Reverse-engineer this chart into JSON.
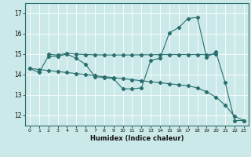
{
  "xlabel": "Humidex (Indice chaleur)",
  "bg_color": "#cce9e9",
  "grid_color": "#ffffff",
  "line_color": "#2a6e6e",
  "xlim": [
    -0.5,
    23.5
  ],
  "ylim": [
    11.5,
    17.5
  ],
  "xticks": [
    0,
    1,
    2,
    3,
    4,
    5,
    6,
    7,
    8,
    9,
    10,
    11,
    12,
    13,
    14,
    15,
    16,
    17,
    18,
    19,
    20,
    21,
    22,
    23
  ],
  "yticks": [
    12,
    13,
    14,
    15,
    16,
    17
  ],
  "line1_x": [
    0,
    1,
    2,
    3,
    4,
    5,
    6,
    7,
    8,
    9,
    10,
    11,
    12,
    13,
    14,
    15,
    16,
    17,
    18,
    19,
    20,
    21,
    22,
    23
  ],
  "line1_y": [
    14.3,
    14.1,
    14.9,
    14.9,
    15.0,
    14.8,
    14.5,
    13.9,
    13.85,
    13.8,
    13.3,
    13.3,
    13.35,
    14.7,
    14.8,
    16.05,
    16.3,
    16.75,
    16.8,
    14.85,
    15.1,
    13.6,
    11.75,
    11.75
  ],
  "line2_x": [
    2,
    3,
    4,
    5,
    6,
    7,
    8,
    9,
    10,
    11,
    12,
    13,
    14,
    15,
    16,
    17,
    18,
    19,
    20
  ],
  "line2_y": [
    15.0,
    14.95,
    15.05,
    15.0,
    14.98,
    14.97,
    14.96,
    14.96,
    14.96,
    14.96,
    14.97,
    14.97,
    14.98,
    14.98,
    14.98,
    14.98,
    14.98,
    14.98,
    15.0
  ],
  "line3_x": [
    0,
    1,
    2,
    3,
    4,
    5,
    6,
    7,
    8,
    9,
    10,
    11,
    12,
    13,
    14,
    15,
    16,
    17,
    18,
    19,
    20,
    21,
    22,
    23
  ],
  "line3_y": [
    14.3,
    14.25,
    14.2,
    14.15,
    14.1,
    14.05,
    14.0,
    13.95,
    13.9,
    13.85,
    13.8,
    13.75,
    13.7,
    13.65,
    13.6,
    13.55,
    13.5,
    13.45,
    13.35,
    13.15,
    12.9,
    12.5,
    11.95,
    11.75
  ]
}
